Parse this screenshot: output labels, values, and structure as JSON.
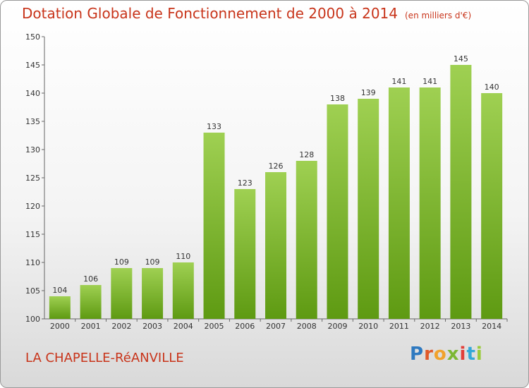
{
  "chart_data": {
    "type": "bar",
    "title": "Dotation Globale de Fonctionnement de 2000 à 2014",
    "subtitle": "(en milliers d'€)",
    "categories": [
      "2000",
      "2001",
      "2002",
      "2003",
      "2004",
      "2005",
      "2006",
      "2007",
      "2008",
      "2009",
      "2010",
      "2011",
      "2012",
      "2013",
      "2014"
    ],
    "values": [
      104,
      106,
      109,
      109,
      110,
      133,
      123,
      126,
      128,
      138,
      139,
      141,
      141,
      145,
      140
    ],
    "ylim": [
      100,
      150
    ],
    "yticks": [
      100,
      105,
      110,
      115,
      120,
      125,
      130,
      135,
      140,
      145,
      150
    ],
    "grid": false,
    "bar_color_top": "#9fd052",
    "bar_color_bottom": "#5e9a12"
  },
  "location": "LA CHAPELLE-RéANVILLE",
  "logo": {
    "letters": [
      "P",
      "r",
      "o",
      "x",
      "i",
      "t",
      "i"
    ]
  }
}
